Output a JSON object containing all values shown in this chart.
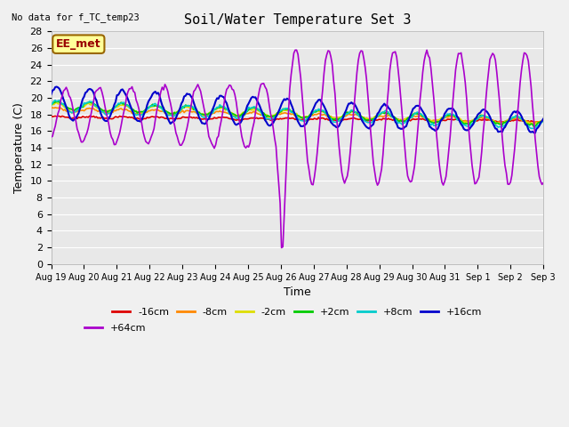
{
  "title": "Soil/Water Temperature Set 3",
  "xlabel": "Time",
  "ylabel": "Temperature (C)",
  "top_left_note": "No data for f_TC_temp23",
  "annotation_label": "EE_met",
  "ylim": [
    0,
    28
  ],
  "yticks": [
    0,
    2,
    4,
    6,
    8,
    10,
    12,
    14,
    16,
    18,
    20,
    22,
    24,
    26,
    28
  ],
  "xtick_labels": [
    "Aug 19",
    "Aug 20",
    "Aug 21",
    "Aug 22",
    "Aug 23",
    "Aug 24",
    "Aug 25",
    "Aug 26",
    "Aug 27",
    "Aug 28",
    "Aug 29",
    "Aug 30",
    "Aug 31",
    "Sep 1",
    "Sep 2",
    "Sep 3"
  ],
  "fig_bg_color": "#f0f0f0",
  "plot_bg_color": "#e8e8e8",
  "grid_color": "#ffffff",
  "series_colors": {
    "-16cm": "#dd0000",
    "-8cm": "#ff8800",
    "-2cm": "#dddd00",
    "+2cm": "#00cc00",
    "+8cm": "#00cccc",
    "+16cm": "#0000cc",
    "+64cm": "#aa00cc"
  },
  "series_lw": {
    "-16cm": 1.2,
    "-8cm": 1.2,
    "-2cm": 1.2,
    "+2cm": 1.2,
    "+8cm": 1.2,
    "+16cm": 1.5,
    "+64cm": 1.2
  }
}
